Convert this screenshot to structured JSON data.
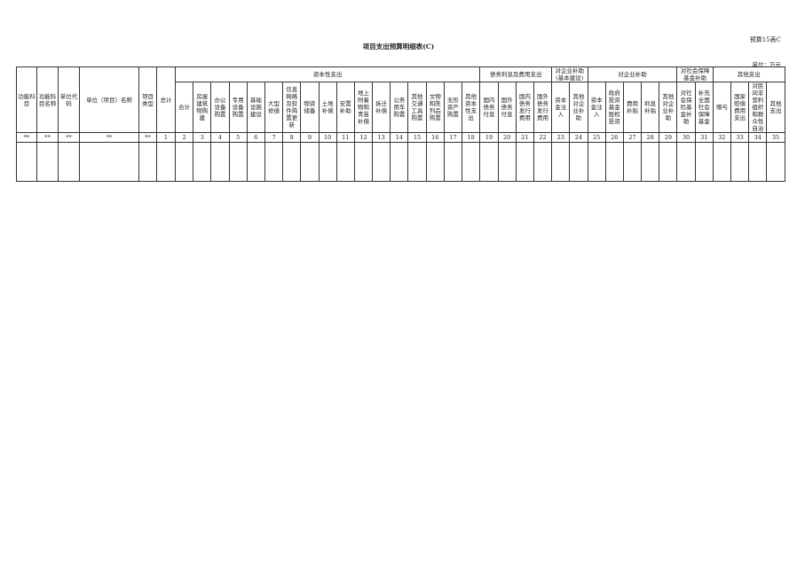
{
  "form_code": "预算15表C",
  "title": "项目支出预算明细表(C)",
  "unit": "单位：万元",
  "fixed_headers": [
    "功能科目",
    "功能科目名称",
    "单位代码",
    "单位（项目）名称",
    "项目类型",
    "总计"
  ],
  "fixed_numbers": [
    "**",
    "**",
    "**",
    "**",
    "**",
    "1"
  ],
  "groups": [
    {
      "label": "资本性支出",
      "columns": [
        "合计",
        "房屋建筑物购建",
        "办公设备购置",
        "专用设备购置",
        "基础设施建设",
        "大型修缮",
        "信息网络及软件购置更新",
        "物资储备",
        "土地补偿",
        "安置补助",
        "地上附着物和青苗补偿",
        "拆迁补偿",
        "公务用车购置",
        "其他交通工具购置",
        "文物和陈列品购置",
        "无形资产购置",
        "其他资本性支出"
      ],
      "numbers": [
        "2",
        "3",
        "4",
        "5",
        "6",
        "7",
        "8",
        "9",
        "10",
        "11",
        "12",
        "13",
        "14",
        "15",
        "16",
        "17",
        "18"
      ]
    },
    {
      "label": "债务利息及费用支出",
      "columns": [
        "国内债务付息",
        "国外债务付息",
        "国内债务发行费用",
        "国外债务发行费用"
      ],
      "numbers": [
        "19",
        "20",
        "21",
        "22"
      ]
    },
    {
      "label": "对企业补助(基本建设)",
      "columns": [
        "资本金注入",
        "其他对企业补助"
      ],
      "numbers": [
        "23",
        "24"
      ]
    },
    {
      "label": "对企业补助",
      "columns": [
        "资本金注入",
        "政府投资基金股权投资",
        "费用补贴",
        "利息补贴",
        "其他对企业补助"
      ],
      "numbers": [
        "25",
        "26",
        "27",
        "28",
        "29"
      ]
    },
    {
      "label": "对社会保障基金补助",
      "columns": [
        "对社会保险基金补助",
        "补充全国社会保障基金"
      ],
      "numbers": [
        "30",
        "31"
      ]
    },
    {
      "label": "其他支出",
      "columns": [
        "赠与",
        "国家赔偿费用支出",
        "对民间非营利组织和群众性自治",
        "其他支出"
      ],
      "numbers": [
        "32",
        "33",
        "34",
        "35"
      ]
    }
  ]
}
